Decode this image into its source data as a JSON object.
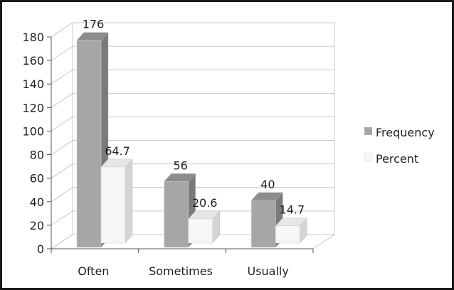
{
  "chart_data": {
    "type": "bar",
    "categories": [
      "Often",
      "Sometimes",
      "Usually"
    ],
    "series": [
      {
        "name": "Frequency",
        "values": [
          176,
          56,
          40
        ],
        "labels": [
          "176",
          "56",
          "40"
        ]
      },
      {
        "name": "Percent",
        "values": [
          64.7,
          20.6,
          14.7
        ],
        "labels": [
          "64.7",
          "20.6",
          "14.7"
        ]
      }
    ],
    "title": "",
    "xlabel": "",
    "ylabel": "",
    "ylim": [
      0,
      180
    ],
    "yticks": [
      "0",
      "20",
      "40",
      "60",
      "80",
      "100",
      "120",
      "140",
      "160",
      "180"
    ],
    "grid": true,
    "legend_position": "right",
    "three_d": true,
    "colors": {
      "frequency_front": "#a6a6a6",
      "frequency_side": "#7a7a7a",
      "frequency_top": "#8c8c8c",
      "percent_front": "#f6f6f6",
      "percent_side": "#d4d4d4",
      "percent_top": "#e6e6e6",
      "gridline": "#c8c8c8",
      "border": "#1a1a1a"
    }
  }
}
